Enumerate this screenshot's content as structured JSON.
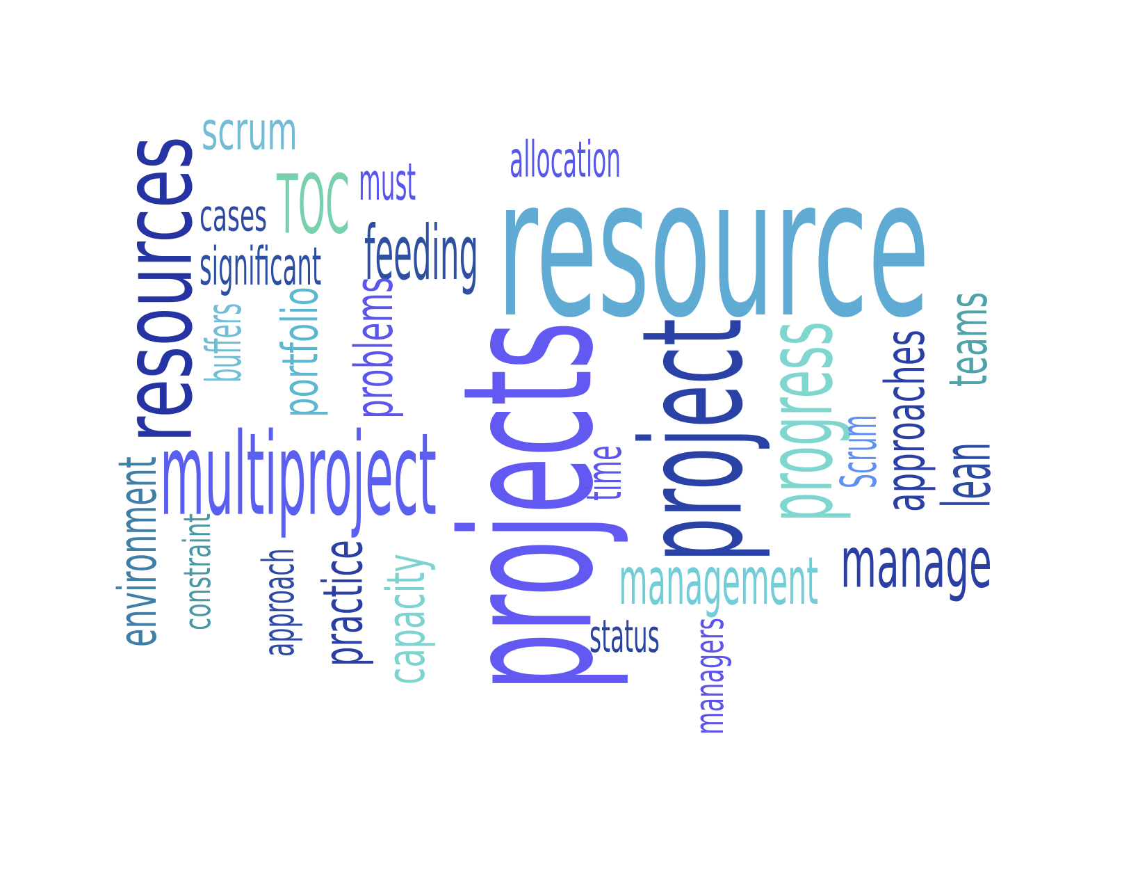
{
  "words": [
    {
      "text": "resource",
      "color": "#5fabd3"
    },
    {
      "text": "projects",
      "color": "#6159f2"
    },
    {
      "text": "project",
      "color": "#2a41a6"
    },
    {
      "text": "resources",
      "color": "#2633a3"
    },
    {
      "text": "multiproject",
      "color": "#5a5ff0"
    },
    {
      "text": "progress",
      "color": "#7fd6cf"
    },
    {
      "text": "manage",
      "color": "#2a3fa1"
    },
    {
      "text": "management",
      "color": "#72cdd6"
    },
    {
      "text": "feeding",
      "color": "#2f4fa0"
    },
    {
      "text": "TOC",
      "color": "#78d0ad"
    },
    {
      "text": "scrum",
      "color": "#73bcd6"
    },
    {
      "text": "allocation",
      "color": "#5857ec"
    },
    {
      "text": "must",
      "color": "#5a56ea"
    },
    {
      "text": "cases",
      "color": "#2e4aa6"
    },
    {
      "text": "significant",
      "color": "#2d4fa3"
    },
    {
      "text": "status",
      "color": "#2b459f"
    },
    {
      "text": "approaches",
      "color": "#2a3fa6"
    },
    {
      "text": "teams",
      "color": "#4ea2a8"
    },
    {
      "text": "lean",
      "color": "#2d4aa3"
    },
    {
      "text": "Scrum",
      "color": "#5f8ff0"
    },
    {
      "text": "time",
      "color": "#5c55ea"
    },
    {
      "text": "managers",
      "color": "#5c55e8"
    },
    {
      "text": "environment",
      "color": "#3f7ea6"
    },
    {
      "text": "constraint",
      "color": "#4a98a3"
    },
    {
      "text": "approach",
      "color": "#2d4aa6"
    },
    {
      "text": "practice",
      "color": "#2b3fa3"
    },
    {
      "text": "capacity",
      "color": "#7dd3cf"
    },
    {
      "text": "problems",
      "color": "#5b56ea"
    },
    {
      "text": "portfolio",
      "color": "#5cb8d0"
    },
    {
      "text": "buffers",
      "color": "#73bcd6"
    }
  ]
}
